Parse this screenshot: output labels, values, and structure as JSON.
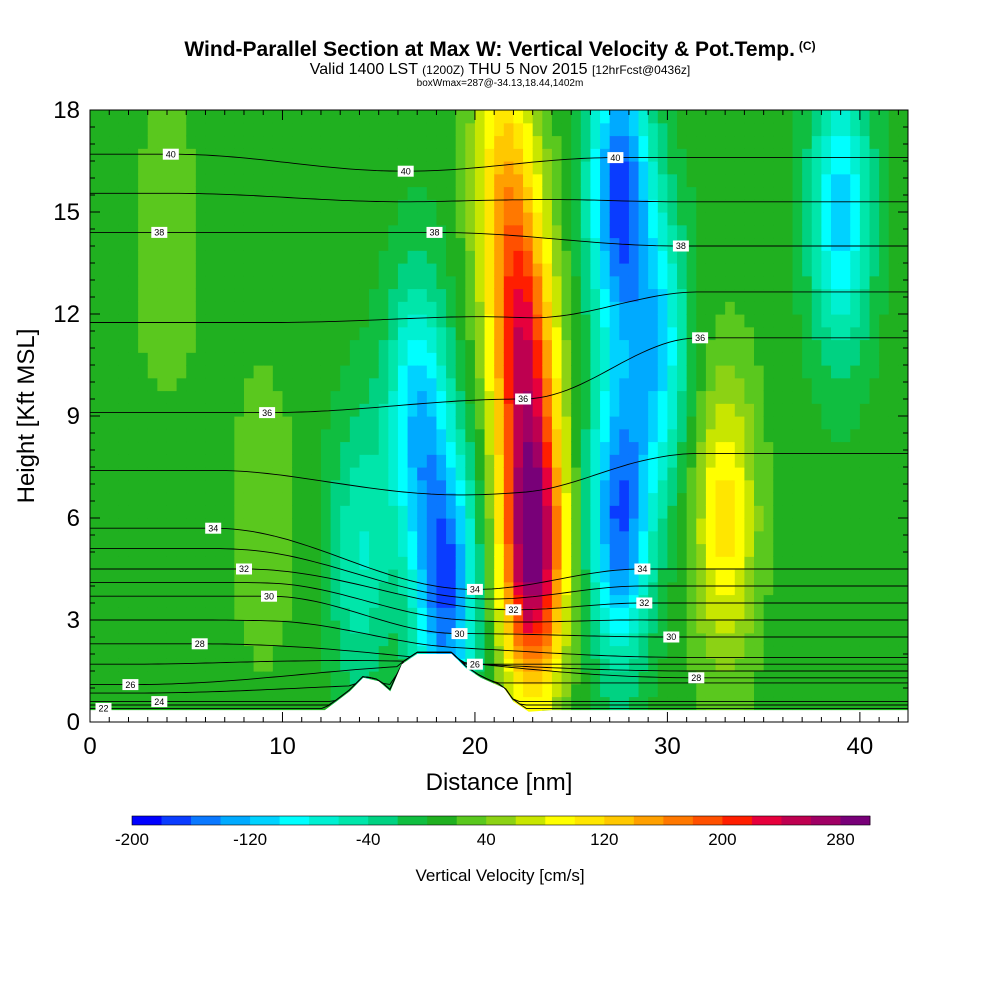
{
  "header": {
    "title": "Wind-Parallel Section at Max W: Vertical Velocity & Pot.Temp.",
    "copyright_mark": "(C)",
    "valid_prefix": "Valid 1400 LST",
    "valid_utc": "(1200Z)",
    "valid_date": "THU 5 Nov 2015",
    "forecast_info": "[12hrFcst@0436z]",
    "box_info": "boxWmax=287@-34.13,18.44,1402m"
  },
  "chart_data": {
    "type": "heatmap",
    "title": "Wind-Parallel Section at Max W: Vertical Velocity & Pot.Temp.",
    "xlabel": "Distance [nm]",
    "ylabel": "Height [Kft MSL]",
    "xlim": [
      0,
      42.5
    ],
    "ylim": [
      0,
      18
    ],
    "x_ticks": [
      0,
      10,
      20,
      30,
      40
    ],
    "y_ticks": [
      0,
      3,
      6,
      9,
      12,
      15,
      18
    ],
    "colorbar": {
      "title": "Vertical Velocity [cm/s]",
      "min": -200,
      "max": 300,
      "step": 20,
      "labels": [
        -200,
        -120,
        -40,
        40,
        120,
        200,
        280
      ],
      "colors": [
        "#0000ff",
        "#0a3cff",
        "#0a78ff",
        "#00aaff",
        "#00d2ff",
        "#00ffff",
        "#00f0d2",
        "#00e6aa",
        "#00d282",
        "#10be40",
        "#20b020",
        "#5ac81e",
        "#8cd214",
        "#c8e600",
        "#ffff00",
        "#ffe600",
        "#ffc800",
        "#ffa000",
        "#ff7800",
        "#ff5000",
        "#ff1e00",
        "#e6003c",
        "#be0050",
        "#a00064",
        "#780078"
      ]
    },
    "vertical_velocity_features": [
      {
        "x": 0,
        "height": 9,
        "value": 20
      },
      {
        "x": 4,
        "height": 14,
        "value": 40
      },
      {
        "x": 9,
        "height": 6,
        "value": 40
      },
      {
        "x": 14,
        "height": 5,
        "value": -60
      },
      {
        "x": 18.5,
        "height": 4,
        "value": -160
      },
      {
        "x": 17,
        "height": 9,
        "value": -110
      },
      {
        "x": 21.5,
        "height": 16,
        "value": 120
      },
      {
        "x": 22.5,
        "height": 11,
        "value": 200
      },
      {
        "x": 23,
        "height": 5,
        "value": 287
      },
      {
        "x": 27.5,
        "height": 15.5,
        "value": -170
      },
      {
        "x": 27.5,
        "height": 6,
        "value": -160
      },
      {
        "x": 29.5,
        "height": 11,
        "value": -100
      },
      {
        "x": 33,
        "height": 6,
        "value": 110
      },
      {
        "x": 39,
        "height": 15,
        "value": -110
      }
    ],
    "potential_temperature_contours": [
      {
        "value": 22,
        "labels": [
          {
            "x": 0.7,
            "height": 0.4
          }
        ]
      },
      {
        "value": 24,
        "labels": [
          {
            "x": 3.6,
            "height": 0.6
          }
        ]
      },
      {
        "value": 26,
        "labels": [
          {
            "x": 2.1,
            "height": 1.1
          },
          {
            "x": 20,
            "height": 1.7
          }
        ]
      },
      {
        "value": 28,
        "labels": [
          {
            "x": 5.7,
            "height": 2.3
          },
          {
            "x": 31.5,
            "height": 1.3
          }
        ]
      },
      {
        "value": 30,
        "labels": [
          {
            "x": 9.3,
            "height": 3.7
          },
          {
            "x": 19.2,
            "height": 2.6
          },
          {
            "x": 30.2,
            "height": 2.5
          }
        ]
      },
      {
        "value": 32,
        "labels": [
          {
            "x": 8,
            "height": 4.5
          },
          {
            "x": 22,
            "height": 3.3
          },
          {
            "x": 28.8,
            "height": 3.5
          }
        ]
      },
      {
        "value": 34,
        "labels": [
          {
            "x": 6.4,
            "height": 5.7
          },
          {
            "x": 20,
            "height": 3.9
          },
          {
            "x": 28.7,
            "height": 4.5
          }
        ]
      },
      {
        "value": 36,
        "labels": [
          {
            "x": 9.2,
            "height": 9.1
          },
          {
            "x": 22.5,
            "height": 9.5
          },
          {
            "x": 31.7,
            "height": 11.3
          }
        ]
      },
      {
        "value": 38,
        "labels": [
          {
            "x": 3.6,
            "height": 14.4
          },
          {
            "x": 17.9,
            "height": 14.4
          },
          {
            "x": 30.7,
            "height": 14.0
          }
        ]
      },
      {
        "value": 40,
        "labels": [
          {
            "x": 4.2,
            "height": 16.7
          },
          {
            "x": 16.4,
            "height": 16.2
          },
          {
            "x": 27.3,
            "height": 16.6
          }
        ]
      }
    ],
    "terrain": [
      {
        "x": 0,
        "height": 0.35
      },
      {
        "x": 12.2,
        "height": 0.35
      },
      {
        "x": 12.8,
        "height": 0.6
      },
      {
        "x": 13.5,
        "height": 0.9
      },
      {
        "x": 14.2,
        "height": 1.3
      },
      {
        "x": 15,
        "height": 1.2
      },
      {
        "x": 15.6,
        "height": 0.9
      },
      {
        "x": 16.2,
        "height": 1.7
      },
      {
        "x": 17,
        "height": 2.0
      },
      {
        "x": 18.8,
        "height": 2.0
      },
      {
        "x": 19.5,
        "height": 1.6
      },
      {
        "x": 20.3,
        "height": 1.3
      },
      {
        "x": 21.5,
        "height": 1.0
      },
      {
        "x": 22,
        "height": 0.6
      },
      {
        "x": 22.8,
        "height": 0.3
      },
      {
        "x": 24,
        "height": 0.35
      },
      {
        "x": 42.5,
        "height": 0.35
      }
    ]
  }
}
